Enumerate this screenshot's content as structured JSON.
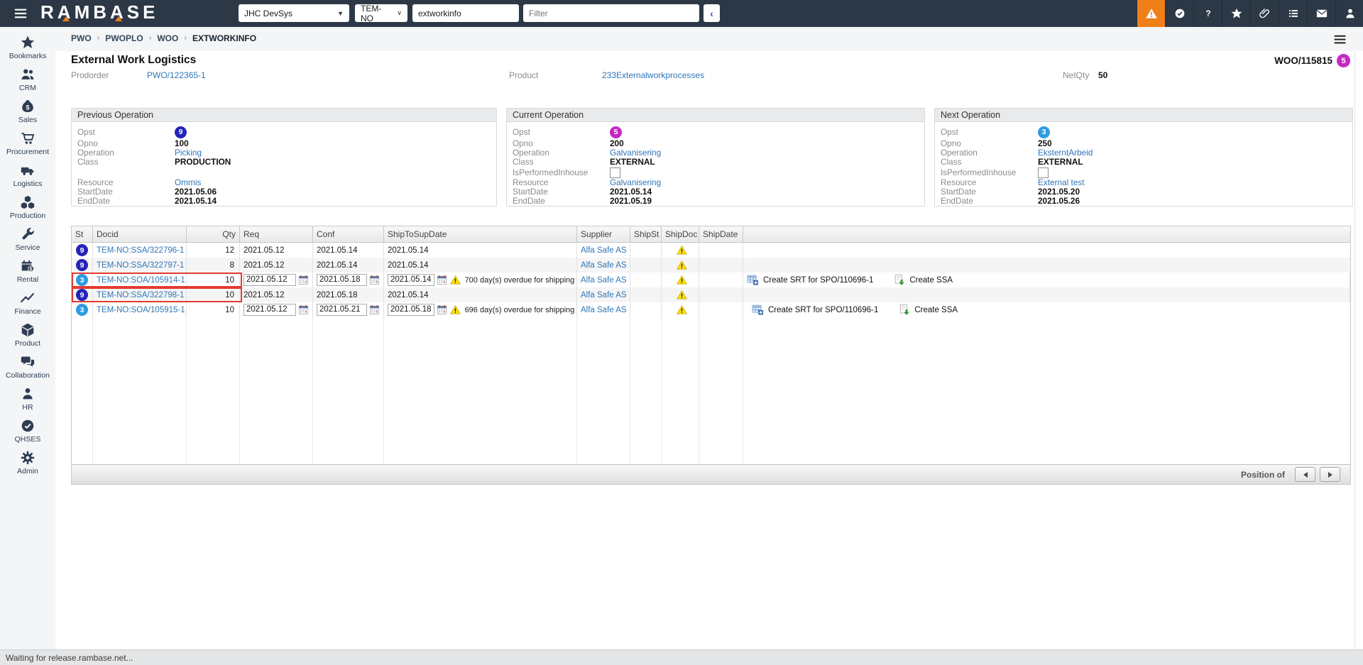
{
  "topbar": {
    "logo_text": "RAMBASE",
    "env_select": {
      "value": "JHC DevSys"
    },
    "db_select": {
      "value": "TEM-NO"
    },
    "program_input": {
      "value": "extworkinfo"
    },
    "filter_input": {
      "placeholder": "Filter"
    },
    "collapse_button": "‹",
    "icons": [
      {
        "name": "alert-icon",
        "active": true
      },
      {
        "name": "approval-icon",
        "active": false
      },
      {
        "name": "help-icon",
        "active": false
      },
      {
        "name": "favorites-icon",
        "active": false
      },
      {
        "name": "attachment-icon",
        "active": false
      },
      {
        "name": "tasks-icon",
        "active": false
      },
      {
        "name": "mail-icon",
        "active": false
      },
      {
        "name": "user-icon",
        "active": false
      }
    ]
  },
  "breadcrumb": {
    "separator": "›",
    "items": [
      "PWO",
      "PWOPLO",
      "WOO",
      "EXTWORKINFO"
    ]
  },
  "sidebar": [
    {
      "icon": "bookmarks-icon",
      "label": "Bookmarks"
    },
    {
      "icon": "crm-icon",
      "label": "CRM"
    },
    {
      "icon": "sales-icon",
      "label": "Sales"
    },
    {
      "icon": "procurement-icon",
      "label": "Procurement"
    },
    {
      "icon": "logistics-icon",
      "label": "Logistics"
    },
    {
      "icon": "production-icon",
      "label": "Production"
    },
    {
      "icon": "service-icon",
      "label": "Service"
    },
    {
      "icon": "rental-icon",
      "label": "Rental"
    },
    {
      "icon": "finance-icon",
      "label": "Finance"
    },
    {
      "icon": "product-icon",
      "label": "Product"
    },
    {
      "icon": "collaboration-icon",
      "label": "Collaboration"
    },
    {
      "icon": "hr-icon",
      "label": "HR"
    },
    {
      "icon": "qhses-icon",
      "label": "QHSES"
    },
    {
      "icon": "admin-icon",
      "label": "Admin"
    }
  ],
  "page": {
    "title": "External Work Logistics",
    "doc_id": "WOO/115815",
    "doc_status": "5",
    "doc_status_color": "#c428c4",
    "prodorder_label": "Prodorder",
    "prodorder_value": "PWO/122365-1",
    "product_label": "Product",
    "product_value": "233Externalworkprocesses",
    "netqty_label": "NetQty",
    "netqty_value": "50"
  },
  "panel_labels": {
    "opst": "Opst",
    "opno": "Opno",
    "operation": "Operation",
    "class": "Class",
    "inhouse": "IsPerformedInhouse",
    "resource": "Resource",
    "startdate": "StartDate",
    "enddate": "EndDate"
  },
  "panels": [
    {
      "title": "Previous Operation",
      "opst": "9",
      "opst_color": "#2524b8",
      "opno": "100",
      "operation": "Picking",
      "class": "PRODUCTION",
      "has_inhouse": false,
      "resource": "Ommis",
      "startdate": "2021.05.06",
      "enddate": "2021.05.14"
    },
    {
      "title": "Current Operation",
      "opst": "5",
      "opst_color": "#c428c4",
      "opno": "200",
      "operation": "Galvanisering",
      "class": "EXTERNAL",
      "has_inhouse": true,
      "resource": "Galvanisering",
      "startdate": "2021.05.14",
      "enddate": "2021.05.19"
    },
    {
      "title": "Next Operation",
      "opst": "3",
      "opst_color": "#2d9ce0",
      "opno": "250",
      "operation": "EksterntArbeid",
      "class": "EXTERNAL",
      "has_inhouse": true,
      "resource": "External test",
      "startdate": "2021.05.20",
      "enddate": "2021.05.26"
    }
  ],
  "table": {
    "columns": [
      "St",
      "Docid",
      "Qty",
      "Req",
      "Conf",
      "ShipToSupDate",
      "Supplier",
      "ShipSt",
      "ShipDoc",
      "ShipDate"
    ],
    "rows": [
      {
        "st": "9",
        "st_color": "#2524b8",
        "docid": "TEM-NO:SSA/322796-1",
        "qty": "12",
        "req": "2021.05.12",
        "conf": "2021.05.14",
        "ship": "2021.05.14",
        "supplier": "Alfa Safe AS",
        "shipdoc_warning": true,
        "editable": false,
        "highlighted": false,
        "overdue": "",
        "actions": []
      },
      {
        "st": "9",
        "st_color": "#2524b8",
        "docid": "TEM-NO:SSA/322797-1",
        "qty": "8",
        "req": "2021.05.12",
        "conf": "2021.05.14",
        "ship": "2021.05.14",
        "supplier": "Alfa Safe AS",
        "shipdoc_warning": true,
        "editable": false,
        "highlighted": false,
        "overdue": "",
        "actions": []
      },
      {
        "st": "3",
        "st_color": "#2d9ce0",
        "docid": "TEM-NO:SOA/105914-1",
        "qty": "10",
        "req": "2021.05.12",
        "conf": "2021.05.18",
        "ship": "2021.05.14",
        "supplier": "Alfa Safe AS",
        "shipdoc_warning": true,
        "editable": true,
        "highlighted": true,
        "overdue": "700 day(s) overdue for shipping",
        "actions": [
          {
            "icon": "create-srt-icon",
            "label": "Create SRT for SPO/110696-1"
          },
          {
            "icon": "create-ssa-icon",
            "label": "Create SSA"
          }
        ]
      },
      {
        "st": "9",
        "st_color": "#2524b8",
        "docid": "TEM-NO:SSA/322798-1",
        "qty": "10",
        "req": "2021.05.12",
        "conf": "2021.05.18",
        "ship": "2021.05.14",
        "supplier": "Alfa Safe AS",
        "shipdoc_warning": true,
        "editable": false,
        "highlighted": true,
        "overdue": "",
        "actions": []
      },
      {
        "st": "3",
        "st_color": "#2d9ce0",
        "docid": "TEM-NO:SOA/105915-1",
        "qty": "10",
        "req": "2021.05.12",
        "conf": "2021.05.21",
        "ship": "2021.05.18",
        "supplier": "Alfa Safe AS",
        "shipdoc_warning": true,
        "editable": true,
        "highlighted": false,
        "overdue": "696 day(s) overdue for shipping",
        "actions": [
          {
            "icon": "create-srt-icon",
            "label": "Create SRT for SPO/110696-1"
          },
          {
            "icon": "create-ssa-icon",
            "label": "Create SSA"
          }
        ]
      }
    ],
    "footer": {
      "position_label": "Position of"
    }
  },
  "statusbar": {
    "text": "Waiting for release.rambase.net..."
  }
}
